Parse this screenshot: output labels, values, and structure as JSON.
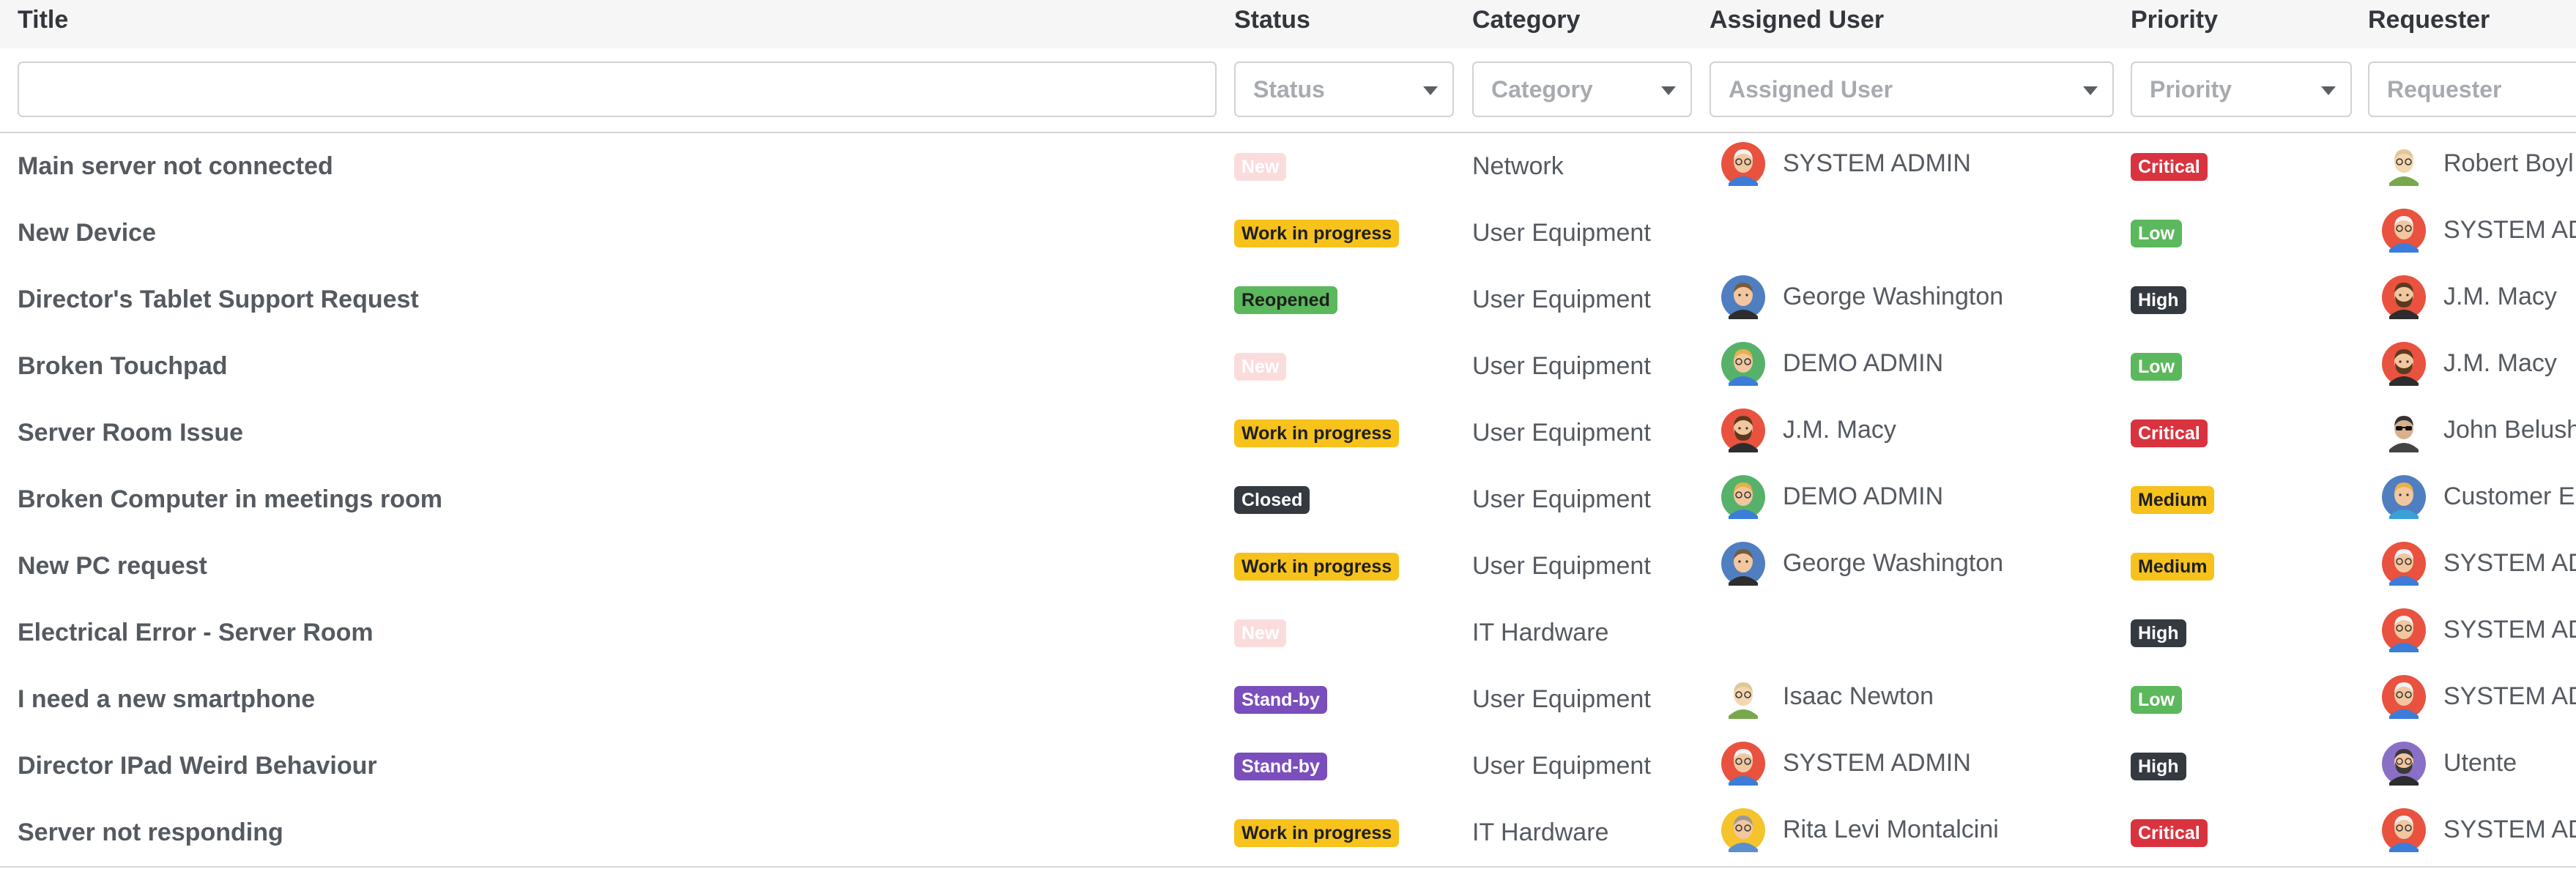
{
  "columns": {
    "title": "Title",
    "status": "Status",
    "category": "Category",
    "assigned_user": "Assigned User",
    "priority": "Priority",
    "requester": "Requester"
  },
  "filters": {
    "title": {
      "value": "",
      "placeholder": ""
    },
    "status": "Status",
    "category": "Category",
    "assigned_user": "Assigned User",
    "priority": "Priority",
    "requester": "Requester"
  },
  "badge_colors": {
    "New": {
      "bg": "#fbdcdd",
      "fg": "#ffffff"
    },
    "Work in progress": {
      "bg": "#f7c21c",
      "fg": "#1e1e1e"
    },
    "Reopened": {
      "bg": "#5cb85c",
      "fg": "#1e1e1e"
    },
    "Closed": {
      "bg": "#343a40",
      "fg": "#ffffff"
    },
    "Stand-by": {
      "bg": "#7a4ebd",
      "fg": "#ffffff"
    },
    "Critical": {
      "bg": "#d9333f",
      "fg": "#ffffff"
    },
    "Low": {
      "bg": "#5cb85c",
      "fg": "#ffffff"
    },
    "High": {
      "bg": "#343a40",
      "fg": "#ffffff"
    },
    "Medium": {
      "bg": "#f7c21c",
      "fg": "#1e1e1e"
    }
  },
  "rows": [
    {
      "title": "Main server not connected",
      "status": "New",
      "category": "Network",
      "assigned": {
        "name": "SYSTEM ADMIN",
        "avatar": "admin-red-avatar"
      },
      "priority": "Critical",
      "requester": {
        "name": "Robert Boyl",
        "avatar": "bald-glasses-avatar"
      }
    },
    {
      "title": "New Device",
      "status": "Work in progress",
      "category": "User Equipment",
      "assigned": {
        "name": "",
        "avatar": ""
      },
      "priority": "Low",
      "requester": {
        "name": "SYSTEM AD",
        "avatar": "admin-red-avatar"
      }
    },
    {
      "title": "Director's Tablet Support Request",
      "status": "Reopened",
      "category": "User Equipment",
      "assigned": {
        "name": "George Washington",
        "avatar": "george-blue-avatar"
      },
      "priority": "High",
      "requester": {
        "name": "J.M. Macy",
        "avatar": "beard-red-avatar"
      }
    },
    {
      "title": "Broken Touchpad",
      "status": "New",
      "category": "User Equipment",
      "assigned": {
        "name": "DEMO ADMIN",
        "avatar": "demo-green-avatar"
      },
      "priority": "Low",
      "requester": {
        "name": "J.M. Macy",
        "avatar": "beard-red-avatar"
      }
    },
    {
      "title": "Server Room Issue",
      "status": "Work in progress",
      "category": "User Equipment",
      "assigned": {
        "name": "J.M. Macy",
        "avatar": "beard-red-avatar"
      },
      "priority": "Critical",
      "requester": {
        "name": "John Belush",
        "avatar": "sunglasses-avatar"
      }
    },
    {
      "title": "Broken Computer in meetings room",
      "status": "Closed",
      "category": "User Equipment",
      "assigned": {
        "name": "DEMO ADMIN",
        "avatar": "demo-green-avatar"
      },
      "priority": "Medium",
      "requester": {
        "name": "Customer E",
        "avatar": "customer-blue-avatar"
      }
    },
    {
      "title": "New PC request",
      "status": "Work in progress",
      "category": "User Equipment",
      "assigned": {
        "name": "George Washington",
        "avatar": "george-blue-avatar"
      },
      "priority": "Medium",
      "requester": {
        "name": "SYSTEM AD",
        "avatar": "admin-red-avatar"
      }
    },
    {
      "title": "Electrical Error - Server Room",
      "status": "New",
      "category": "IT Hardware",
      "assigned": {
        "name": "",
        "avatar": ""
      },
      "priority": "High",
      "requester": {
        "name": "SYSTEM AD",
        "avatar": "admin-red-avatar"
      }
    },
    {
      "title": "I need a new smartphone",
      "status": "Stand-by",
      "category": "User Equipment",
      "assigned": {
        "name": "Isaac Newton",
        "avatar": "bald-glasses-avatar"
      },
      "priority": "Low",
      "requester": {
        "name": "SYSTEM AD",
        "avatar": "admin-red-avatar"
      }
    },
    {
      "title": "Director IPad Weird Behaviour",
      "status": "Stand-by",
      "category": "User Equipment",
      "assigned": {
        "name": "SYSTEM ADMIN",
        "avatar": "admin-red-avatar"
      },
      "priority": "High",
      "requester": {
        "name": "Utente",
        "avatar": "utente-purple-avatar"
      }
    },
    {
      "title": "Server not responding",
      "status": "Work in progress",
      "category": "IT Hardware",
      "assigned": {
        "name": "Rita Levi Montalcini",
        "avatar": "rita-yellow-avatar"
      },
      "priority": "Critical",
      "requester": {
        "name": "SYSTEM AD",
        "avatar": "admin-red-avatar"
      }
    }
  ]
}
